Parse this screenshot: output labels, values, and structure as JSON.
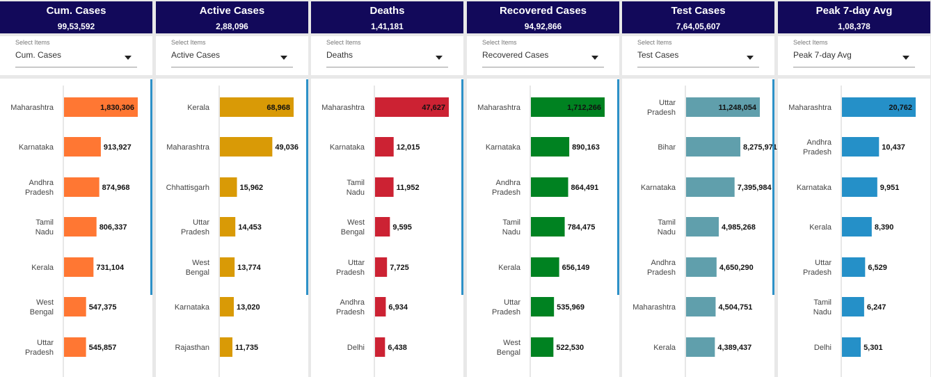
{
  "filter_label": "Select Items",
  "panels": [
    {
      "title": "Cum. Cases",
      "total": "99,53,592",
      "selected": "Cum. Cases",
      "color": "#ff7733",
      "max": 1830306,
      "chart_data": {
        "type": "bar",
        "categories": [
          "Maharashtra",
          "Karnataka",
          "Andhra Pradesh",
          "Tamil Nadu",
          "Kerala",
          "West Bengal",
          "Uttar Pradesh"
        ],
        "values": [
          1830306,
          913927,
          874968,
          806337,
          731104,
          547375,
          545857
        ],
        "labels": [
          "1,830,306",
          "913,927",
          "874,968",
          "806,337",
          "731,104",
          "547,375",
          "545,857"
        ]
      }
    },
    {
      "title": "Active Cases",
      "total": "2,88,096",
      "selected": "Active Cases",
      "color": "#d99a06",
      "max": 68968,
      "chart_data": {
        "type": "bar",
        "categories": [
          "Kerala",
          "Maharashtra",
          "Chhattisgarh",
          "Uttar Pradesh",
          "West Bengal",
          "Karnataka",
          "Rajasthan"
        ],
        "values": [
          68968,
          49036,
          15962,
          14453,
          13774,
          13020,
          11735
        ],
        "labels": [
          "68,968",
          "49,036",
          "15,962",
          "14,453",
          "13,774",
          "13,020",
          "11,735"
        ]
      }
    },
    {
      "title": "Deaths",
      "total": "1,41,181",
      "selected": "Deaths",
      "color": "#cc2233",
      "max": 47627,
      "chart_data": {
        "type": "bar",
        "categories": [
          "Maharashtra",
          "Karnataka",
          "Tamil Nadu",
          "West Bengal",
          "Uttar Pradesh",
          "Andhra Pradesh",
          "Delhi"
        ],
        "values": [
          47627,
          12015,
          11952,
          9595,
          7725,
          6934,
          6438
        ],
        "labels": [
          "47,627",
          "12,015",
          "11,952",
          "9,595",
          "7,725",
          "6,934",
          "6,438"
        ]
      }
    },
    {
      "title": "Recovered Cases",
      "total": "94,92,866",
      "selected": "Recovered Cases",
      "color": "#008221",
      "max": 1712266,
      "chart_data": {
        "type": "bar",
        "categories": [
          "Maharashtra",
          "Karnataka",
          "Andhra Pradesh",
          "Tamil Nadu",
          "Kerala",
          "Uttar Pradesh",
          "West Bengal"
        ],
        "values": [
          1712266,
          890163,
          864491,
          784475,
          656149,
          535969,
          522530
        ],
        "labels": [
          "1,712,266",
          "890,163",
          "864,491",
          "784,475",
          "656,149",
          "535,969",
          "522,530"
        ]
      }
    },
    {
      "title": "Test Cases",
      "total": "7,64,05,607",
      "selected": "Test Cases",
      "color": "#609fac",
      "max": 11248054,
      "chart_data": {
        "type": "bar",
        "categories": [
          "Uttar Pradesh",
          "Bihar",
          "Karnataka",
          "Tamil Nadu",
          "Andhra Pradesh",
          "Maharashtra",
          "Kerala"
        ],
        "values": [
          11248054,
          8275971,
          7395984,
          4985268,
          4650290,
          4504751,
          4389437
        ],
        "labels": [
          "11,248,054",
          "8,275,971",
          "7,395,984",
          "4,985,268",
          "4,650,290",
          "4,504,751",
          "4,389,437"
        ]
      }
    },
    {
      "title": "Peak 7-day Avg",
      "total": "1,08,378",
      "selected": "Peak 7-day Avg",
      "color": "#2590c8",
      "max": 20762,
      "chart_data": {
        "type": "bar",
        "categories": [
          "Maharashtra",
          "Andhra Pradesh",
          "Karnataka",
          "Kerala",
          "Uttar Pradesh",
          "Tamil Nadu",
          "Delhi"
        ],
        "values": [
          20762,
          10437,
          9951,
          8390,
          6529,
          6247,
          5301
        ],
        "labels": [
          "20,762",
          "10,437",
          "9,951",
          "8,390",
          "6,529",
          "6,247",
          "5,301"
        ]
      }
    }
  ]
}
